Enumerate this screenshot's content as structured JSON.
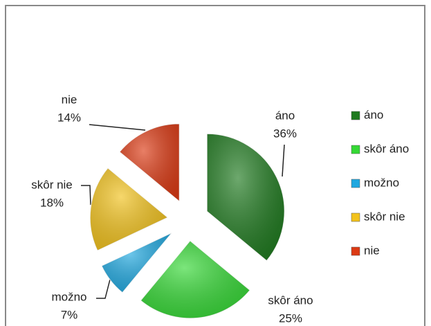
{
  "chart_data": {
    "type": "pie",
    "categories": [
      "áno",
      "skôr áno",
      "možno",
      "skôr nie",
      "nie"
    ],
    "values": [
      36,
      25,
      7,
      18,
      14
    ],
    "value_labels": [
      "36%",
      "25%",
      "7%",
      "18%",
      "14%"
    ],
    "colors": [
      "#1f7a1f",
      "#35d835",
      "#1fa8e0",
      "#f2c21c",
      "#dc3a14"
    ]
  }
}
